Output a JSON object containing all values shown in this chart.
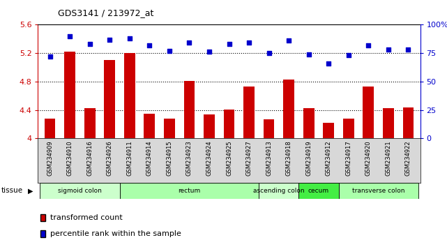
{
  "title": "GDS3141 / 213972_at",
  "samples": [
    "GSM234909",
    "GSM234910",
    "GSM234916",
    "GSM234926",
    "GSM234911",
    "GSM234914",
    "GSM234915",
    "GSM234923",
    "GSM234924",
    "GSM234925",
    "GSM234927",
    "GSM234913",
    "GSM234918",
    "GSM234919",
    "GSM234912",
    "GSM234917",
    "GSM234920",
    "GSM234921",
    "GSM234922"
  ],
  "bar_values": [
    4.28,
    5.22,
    4.42,
    5.1,
    5.2,
    4.35,
    4.28,
    4.81,
    4.34,
    4.41,
    4.73,
    4.27,
    4.83,
    4.42,
    4.22,
    4.28,
    4.73,
    4.42,
    4.43
  ],
  "dot_values": [
    72,
    90,
    83,
    87,
    88,
    82,
    77,
    84,
    76,
    83,
    84,
    75,
    86,
    74,
    66,
    73,
    82,
    78,
    78
  ],
  "bar_color": "#cc0000",
  "dot_color": "#0000cc",
  "ylim_left": [
    4.0,
    5.6
  ],
  "ylim_right": [
    0,
    100
  ],
  "yticks_left": [
    4.0,
    4.4,
    4.8,
    5.2,
    5.6
  ],
  "ytick_labels_left": [
    "4",
    "4.4",
    "4.8",
    "5.2",
    "5.6"
  ],
  "yticks_right": [
    0,
    25,
    50,
    75,
    100
  ],
  "ytick_labels_right": [
    "0",
    "25",
    "50",
    "75",
    "100%"
  ],
  "hlines": [
    4.4,
    4.8,
    5.2
  ],
  "tissue_groups": [
    {
      "label": "sigmoid colon",
      "start": 0,
      "end": 4,
      "color": "#ccffcc"
    },
    {
      "label": "rectum",
      "start": 4,
      "end": 11,
      "color": "#aaffaa"
    },
    {
      "label": "ascending colon",
      "start": 11,
      "end": 13,
      "color": "#ccffcc"
    },
    {
      "label": "cecum",
      "start": 13,
      "end": 15,
      "color": "#44ee44"
    },
    {
      "label": "transverse colon",
      "start": 15,
      "end": 19,
      "color": "#aaffaa"
    }
  ],
  "legend_bar_label": "transformed count",
  "legend_dot_label": "percentile rank within the sample",
  "xlabel_tissue": "tissue",
  "background_color": "#ffffff",
  "xticklabel_bg": "#d8d8d8"
}
